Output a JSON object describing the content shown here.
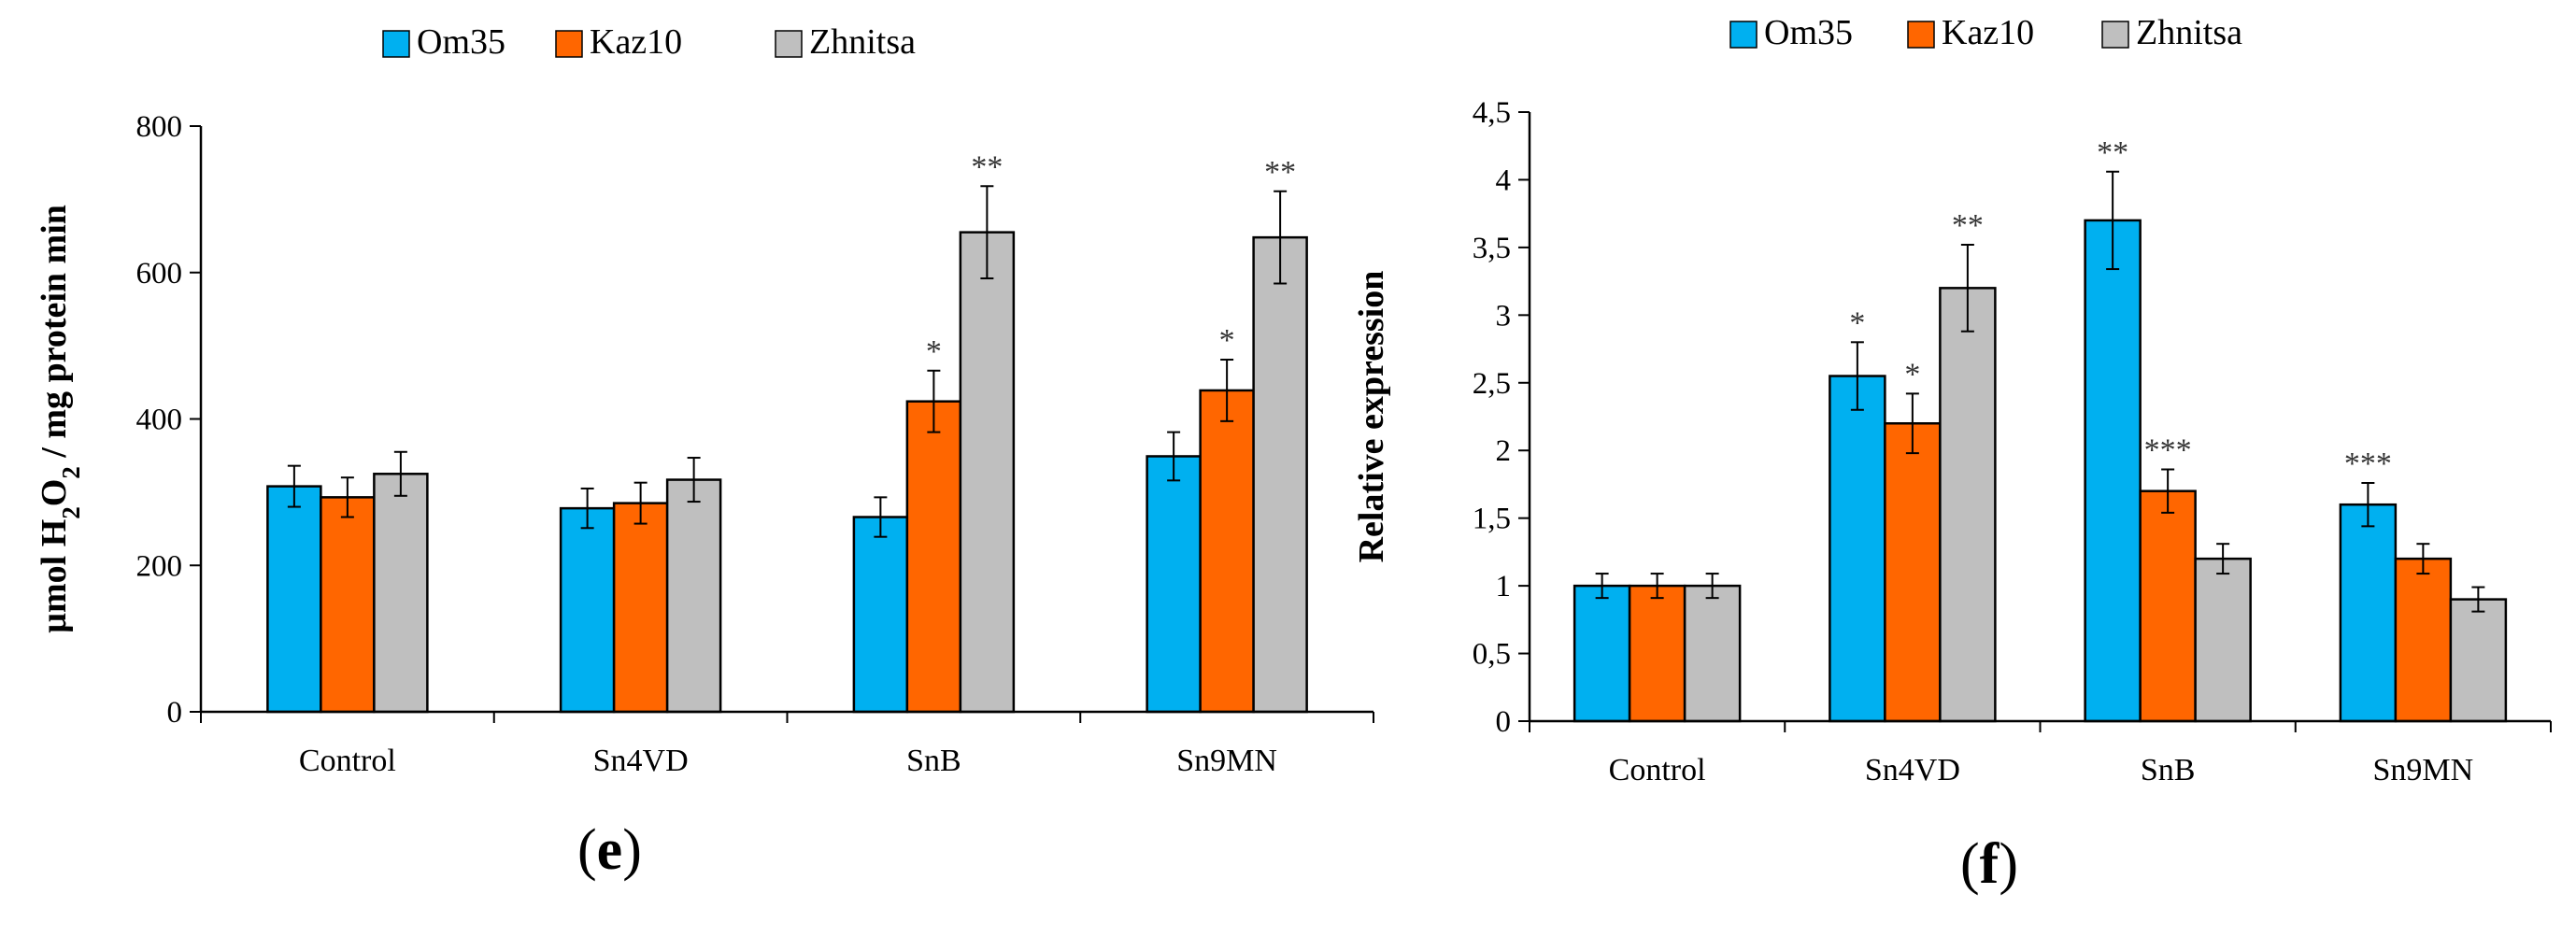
{
  "chart_data": [
    {
      "type": "bar",
      "panel_label": "e",
      "title": "",
      "xlabel": "",
      "ylabel": {
        "pre": "µmol H",
        "sub1": "2",
        "mid": "O",
        "sub2": "2",
        "post": " / mg protein min"
      },
      "ylim": [
        0,
        800
      ],
      "yticks": [
        0,
        200,
        400,
        600,
        800
      ],
      "ytick_labels": [
        "0",
        "200",
        "400",
        "600",
        "800"
      ],
      "grid": false,
      "legend_position": "top",
      "categories": [
        "Control",
        "Sn4VD",
        "SnB",
        "Sn9MN"
      ],
      "series": [
        {
          "name": "Om35",
          "color": "#00B0F0",
          "values": [
            308,
            278,
            266,
            349
          ],
          "errors": [
            28,
            27,
            27,
            33
          ],
          "significance": [
            "",
            "",
            "",
            ""
          ]
        },
        {
          "name": "Kaz10",
          "color": "#FF6600",
          "values": [
            293,
            285,
            424,
            439
          ],
          "errors": [
            27,
            28,
            42,
            42
          ],
          "significance": [
            "",
            "",
            "*",
            "*"
          ]
        },
        {
          "name": "Zhnitsa",
          "color": "#BFBFBF",
          "values": [
            325,
            317,
            655,
            648
          ],
          "errors": [
            30,
            30,
            63,
            63
          ],
          "significance": [
            "",
            "",
            "**",
            "**"
          ]
        }
      ]
    },
    {
      "type": "bar",
      "panel_label": "f",
      "title": "",
      "xlabel": "",
      "ylabel": "Relative expression",
      "ylim": [
        0,
        4.5
      ],
      "yticks": [
        0,
        0.5,
        1,
        1.5,
        2,
        2.5,
        3,
        3.5,
        4,
        4.5
      ],
      "ytick_labels": [
        "0",
        "0,5",
        "1",
        "1,5",
        "2",
        "2,5",
        "3",
        "3,5",
        "4",
        "4,5"
      ],
      "grid": false,
      "legend_position": "top",
      "categories": [
        "Control",
        "Sn4VD",
        "SnB",
        "Sn9MN"
      ],
      "series": [
        {
          "name": "Om35",
          "color": "#00B0F0",
          "values": [
            1.0,
            2.55,
            3.7,
            1.6
          ],
          "errors": [
            0.09,
            0.25,
            0.36,
            0.16
          ],
          "significance": [
            "",
            "*",
            "**",
            "***"
          ]
        },
        {
          "name": "Kaz10",
          "color": "#FF6600",
          "values": [
            1.0,
            2.2,
            1.7,
            1.2
          ],
          "errors": [
            0.09,
            0.22,
            0.16,
            0.11
          ],
          "significance": [
            "",
            "*",
            "***",
            ""
          ]
        },
        {
          "name": "Zhnitsa",
          "color": "#BFBFBF",
          "values": [
            1.0,
            3.2,
            1.2,
            0.9
          ],
          "errors": [
            0.09,
            0.32,
            0.11,
            0.09
          ],
          "significance": [
            "",
            "**",
            "",
            ""
          ]
        }
      ]
    }
  ]
}
